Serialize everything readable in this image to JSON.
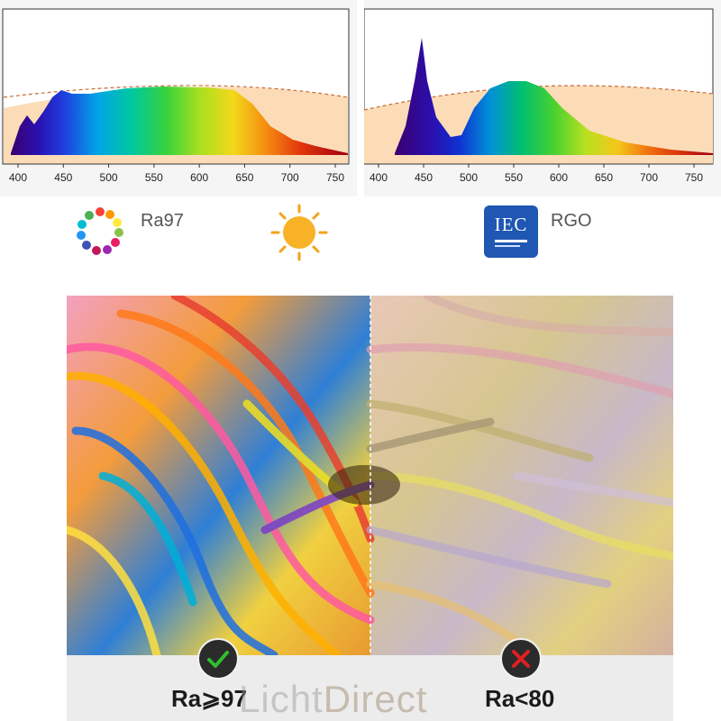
{
  "spectrum_full": {
    "ticks": [
      "400",
      "450",
      "500",
      "550",
      "600",
      "650",
      "700",
      "750"
    ]
  },
  "spectrum_rgo": {
    "ticks": [
      "400",
      "450",
      "500",
      "550",
      "600",
      "650",
      "700",
      "750"
    ]
  },
  "legend": {
    "ra_label": "Ra97",
    "iec_text": "IEC",
    "rgo_label": "RGO",
    "icons": [
      "color-wheel-icon",
      "sun-icon",
      "iec-icon"
    ]
  },
  "comparison": {
    "good_label": "Ra⩾97",
    "bad_label": "Ra<80",
    "good_icon": "check-icon",
    "bad_icon": "cross-icon",
    "colors": {
      "check": "#2fbf2f",
      "cross": "#e02020"
    }
  },
  "watermark": {
    "part1": "Licht",
    "part2": "Direct"
  }
}
